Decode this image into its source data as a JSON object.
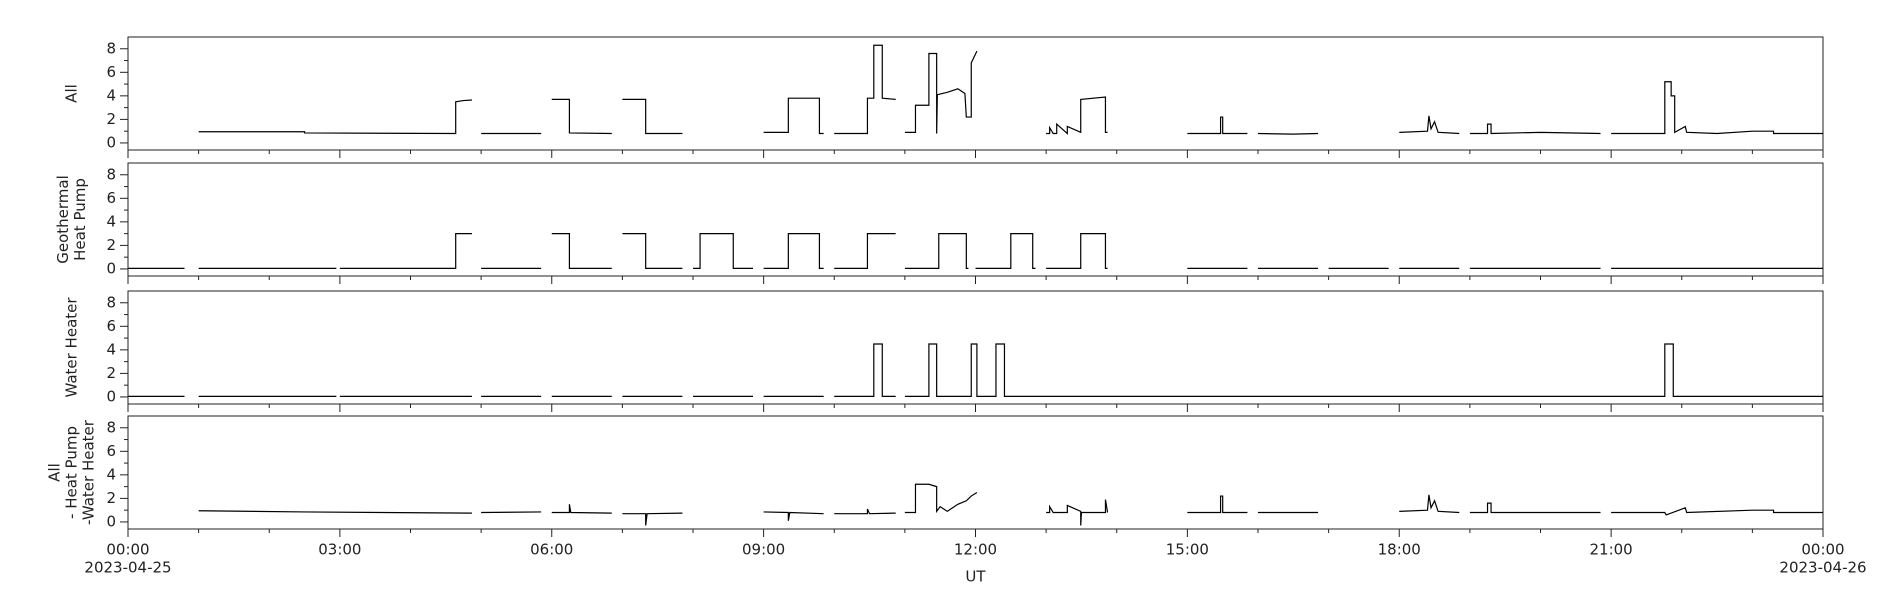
{
  "chart_data": [
    {
      "type": "line",
      "ylabel": [
        "All"
      ],
      "color": "#000000",
      "xlim": [
        0,
        24
      ],
      "ylim": [
        -0.6,
        9
      ],
      "yticks": [
        0,
        2,
        4,
        6,
        8
      ],
      "yminorticks": [
        1,
        3,
        5,
        7
      ],
      "x": [
        1,
        2.5,
        2.5,
        4.64,
        4.64,
        4.75,
        4.87,
        4.93,
        5,
        5.85,
        5.93,
        6,
        6.25,
        6.25,
        6.85,
        6.93,
        7,
        7.33,
        7.33,
        7.85,
        8.4,
        9,
        9.35,
        9.35,
        9.79,
        9.79,
        9.85,
        9.93,
        10,
        10.47,
        10.47,
        10.56,
        10.56,
        10.68,
        10.68,
        10.87,
        10.93,
        11,
        11.15,
        11.15,
        11.34,
        11.34,
        11.45,
        11.45,
        11.46,
        11.6,
        11.75,
        11.85,
        11.87,
        11.94,
        11.94,
        12.02,
        12.5,
        13,
        13.05,
        13.05,
        13.1,
        13.15,
        13.15,
        13.3,
        13.3,
        13.49,
        13.49,
        13.84,
        13.84,
        13.87,
        14.4,
        15,
        15.47,
        15.47,
        15.5,
        15.5,
        15.85,
        15.93,
        16,
        16.5,
        16.85,
        17.4,
        18,
        18.4,
        18.42,
        18.45,
        18.5,
        18.55,
        18.85,
        18.93,
        19,
        19.25,
        19.25,
        19.3,
        19.3,
        20.0,
        20.85,
        20.93,
        21,
        21.76,
        21.76,
        21.85,
        21.85,
        21.9,
        21.9,
        22.05,
        22.07,
        22.5,
        23.0,
        23.3,
        23.3,
        24
      ],
      "values": [
        0.95,
        0.95,
        0.85,
        0.8,
        3.5,
        3.6,
        3.65,
        null,
        0.8,
        0.8,
        null,
        3.7,
        3.7,
        0.85,
        0.8,
        null,
        3.7,
        3.7,
        0.8,
        0.8,
        null,
        0.9,
        0.9,
        3.8,
        3.8,
        0.8,
        0.8,
        null,
        0.8,
        0.8,
        3.8,
        3.8,
        8.3,
        8.3,
        3.8,
        3.7,
        null,
        0.9,
        0.9,
        3.2,
        3.2,
        7.6,
        7.6,
        0.8,
        4.1,
        4.3,
        4.6,
        4.2,
        2.2,
        2.2,
        6.8,
        7.8,
        null,
        0.8,
        0.8,
        1.3,
        0.8,
        0.8,
        1.6,
        0.8,
        1.4,
        0.9,
        3.7,
        3.9,
        0.9,
        0.9,
        null,
        0.8,
        0.8,
        2.2,
        2.2,
        0.8,
        0.8,
        null,
        0.8,
        0.75,
        0.8,
        null,
        0.9,
        1.0,
        2.3,
        1.2,
        1.8,
        0.9,
        0.8,
        null,
        0.8,
        0.8,
        1.6,
        1.6,
        0.8,
        0.9,
        0.8,
        null,
        0.8,
        0.8,
        5.2,
        5.2,
        4.0,
        4.0,
        0.9,
        1.4,
        0.9,
        0.8,
        1.0,
        1.0,
        0.8,
        0.8
      ]
    },
    {
      "type": "line",
      "ylabel": [
        "Geothermal",
        "Heat Pump"
      ],
      "color": "#000000",
      "xlim": [
        0,
        24
      ],
      "ylim": [
        -0.6,
        9
      ],
      "yticks": [
        0,
        2,
        4,
        6,
        8
      ],
      "yminorticks": [
        1,
        3,
        5,
        7
      ],
      "x": [
        0,
        0.8,
        0.9,
        1,
        2.95,
        2.98,
        3,
        4.64,
        4.64,
        4.87,
        4.93,
        5,
        5.85,
        5.93,
        6,
        6.25,
        6.25,
        6.85,
        6.93,
        7,
        7.33,
        7.33,
        7.85,
        7.93,
        8,
        8.1,
        8.1,
        8.57,
        8.57,
        8.85,
        8.93,
        9,
        9.35,
        9.35,
        9.79,
        9.79,
        9.85,
        9.93,
        10,
        10.47,
        10.47,
        10.87,
        10.93,
        11,
        11.48,
        11.48,
        11.87,
        11.87,
        11.9,
        11.95,
        12,
        12.5,
        12.5,
        12.81,
        12.81,
        12.85,
        12.93,
        13,
        13.49,
        13.49,
        13.84,
        13.84,
        13.87,
        14.4,
        15,
        15.85,
        15.93,
        16,
        16.85,
        16.93,
        17,
        17.85,
        17.93,
        18,
        18.85,
        18.93,
        19,
        20.85,
        20.93,
        21,
        24
      ],
      "values": [
        0.05,
        0.05,
        null,
        0.05,
        0.05,
        null,
        0.05,
        0.05,
        3.0,
        3.0,
        null,
        0.05,
        0.05,
        null,
        3.0,
        3.0,
        0.05,
        0.05,
        null,
        3.0,
        3.0,
        0.05,
        0.05,
        null,
        0.05,
        0.05,
        3.0,
        3.0,
        0.05,
        0.05,
        null,
        0.05,
        0.05,
        3.0,
        3.0,
        0.05,
        0.05,
        null,
        0.05,
        0.05,
        3.0,
        3.0,
        null,
        0.05,
        0.05,
        3.0,
        3.0,
        0.05,
        0.05,
        null,
        0.05,
        0.05,
        3.0,
        3.0,
        0.05,
        0.05,
        null,
        0.05,
        0.05,
        3.0,
        3.0,
        0.05,
        0.05,
        null,
        0.05,
        0.05,
        null,
        0.05,
        0.05,
        null,
        0.05,
        0.05,
        null,
        0.05,
        0.05,
        null,
        0.05,
        0.05,
        null,
        0.05,
        0.05
      ]
    },
    {
      "type": "line",
      "ylabel": [
        "Water Heater"
      ],
      "color": "#000000",
      "xlim": [
        0,
        24
      ],
      "ylim": [
        -0.6,
        9
      ],
      "yticks": [
        0,
        2,
        4,
        6,
        8
      ],
      "yminorticks": [
        1,
        3,
        5,
        7
      ],
      "x": [
        0,
        0.8,
        0.9,
        1,
        2.95,
        2.98,
        3,
        4.87,
        4.93,
        5,
        5.85,
        5.93,
        6,
        6.85,
        6.93,
        7,
        7.85,
        7.93,
        8,
        8.85,
        8.93,
        9,
        9.85,
        9.93,
        10,
        10.56,
        10.56,
        10.68,
        10.68,
        10.87,
        10.93,
        11,
        11.34,
        11.34,
        11.45,
        11.45,
        11.94,
        11.94,
        12.02,
        12.02,
        12.29,
        12.29,
        12.41,
        12.41,
        21.76,
        21.76,
        21.88,
        21.88,
        24
      ],
      "values": [
        0.05,
        0.05,
        null,
        0.05,
        0.05,
        null,
        0.05,
        0.05,
        null,
        0.05,
        0.05,
        null,
        0.05,
        0.05,
        null,
        0.05,
        0.05,
        null,
        0.05,
        0.05,
        null,
        0.05,
        0.05,
        null,
        0.05,
        0.05,
        4.5,
        4.5,
        0.05,
        0.05,
        null,
        0.05,
        0.05,
        4.5,
        4.5,
        0.05,
        0.05,
        4.5,
        4.5,
        0.05,
        0.05,
        4.5,
        4.5,
        0.05,
        0.05,
        4.5,
        4.5,
        0.05,
        0.05
      ]
    },
    {
      "type": "line",
      "ylabel": [
        "All",
        "- Heat Pump",
        "-Water Heater"
      ],
      "color": "#000000",
      "xlim": [
        0,
        24
      ],
      "ylim": [
        -0.6,
        9
      ],
      "yticks": [
        0,
        2,
        4,
        6,
        8
      ],
      "yminorticks": [
        1,
        3,
        5,
        7
      ],
      "x": [
        1,
        2.5,
        4.87,
        4.93,
        5,
        5.85,
        5.93,
        6,
        6.25,
        6.25,
        6.27,
        6.85,
        6.93,
        7,
        7.33,
        7.33,
        7.35,
        7.85,
        8.4,
        9,
        9.35,
        9.35,
        9.37,
        9.85,
        9.93,
        10,
        10.47,
        10.47,
        10.5,
        10.87,
        10.93,
        11,
        11.15,
        11.15,
        11.34,
        11.45,
        11.45,
        11.5,
        11.6,
        11.75,
        11.87,
        11.94,
        12.02,
        12.5,
        13,
        13.05,
        13.05,
        13.1,
        13.3,
        13.3,
        13.49,
        13.49,
        13.5,
        13.84,
        13.84,
        13.87,
        14.4,
        15,
        15.47,
        15.47,
        15.5,
        15.5,
        15.85,
        15.93,
        16,
        16.85,
        17.4,
        18,
        18.4,
        18.42,
        18.45,
        18.5,
        18.55,
        18.85,
        18.93,
        19,
        19.25,
        19.25,
        19.3,
        19.3,
        20.85,
        20.93,
        21,
        21.76,
        21.78,
        22.05,
        22.07,
        23.0,
        23.3,
        23.3,
        24
      ],
      "values": [
        0.95,
        0.85,
        0.75,
        null,
        0.8,
        0.85,
        null,
        0.8,
        0.8,
        1.5,
        0.8,
        0.75,
        null,
        0.7,
        0.7,
        -0.3,
        0.7,
        0.75,
        null,
        0.85,
        0.8,
        0.1,
        0.8,
        0.7,
        null,
        0.7,
        0.7,
        1.1,
        0.7,
        0.75,
        null,
        0.8,
        0.8,
        3.2,
        3.2,
        3.0,
        0.9,
        1.3,
        0.9,
        1.5,
        1.8,
        2.2,
        2.5,
        null,
        0.8,
        0.8,
        1.3,
        0.8,
        0.8,
        1.4,
        0.9,
        -0.3,
        0.8,
        0.8,
        1.9,
        0.8,
        null,
        0.8,
        0.8,
        2.2,
        2.2,
        0.8,
        0.8,
        null,
        0.8,
        0.8,
        null,
        0.9,
        1.0,
        2.3,
        1.2,
        1.8,
        0.9,
        0.8,
        null,
        0.8,
        0.8,
        1.6,
        1.6,
        0.8,
        0.8,
        null,
        0.8,
        0.8,
        0.6,
        1.2,
        0.8,
        1.0,
        1.0,
        0.8,
        0.8
      ],
      "xlabel": "UT",
      "x_start_label": "2023-04-25",
      "x_end_label": "2023-04-26",
      "xticks": [
        {
          "value": 0,
          "label": "00:00"
        },
        {
          "value": 3,
          "label": "03:00"
        },
        {
          "value": 6,
          "label": "06:00"
        },
        {
          "value": 9,
          "label": "09:00"
        },
        {
          "value": 12,
          "label": "12:00"
        },
        {
          "value": 15,
          "label": "15:00"
        },
        {
          "value": 18,
          "label": "18:00"
        },
        {
          "value": 21,
          "label": "21:00"
        },
        {
          "value": 24,
          "label": "00:00"
        }
      ],
      "xminorticks": [
        1,
        2,
        4,
        5,
        7,
        8,
        10,
        11,
        13,
        14,
        16,
        17,
        19,
        20,
        22,
        23
      ]
    }
  ]
}
